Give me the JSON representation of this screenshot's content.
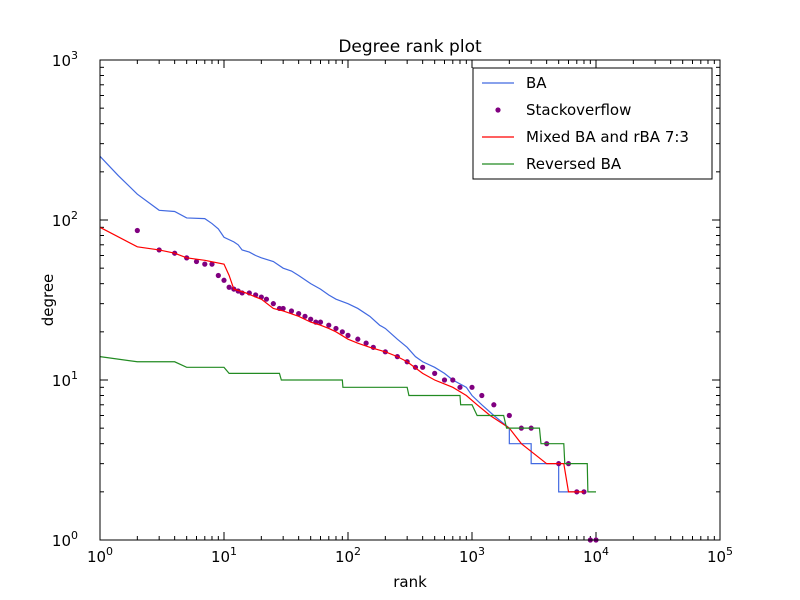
{
  "chart_data": {
    "type": "line",
    "title": "Degree rank plot",
    "xlabel": "rank",
    "ylabel": "degree",
    "xscale": "log",
    "yscale": "log",
    "xlim": [
      1,
      100000
    ],
    "ylim": [
      1,
      1000
    ],
    "grid": false,
    "legend_position": "top-right",
    "x_tick_labels": [
      {
        "base": "10",
        "exp": "0",
        "value": 1
      },
      {
        "base": "10",
        "exp": "1",
        "value": 10
      },
      {
        "base": "10",
        "exp": "2",
        "value": 100
      },
      {
        "base": "10",
        "exp": "3",
        "value": 1000
      },
      {
        "base": "10",
        "exp": "4",
        "value": 10000
      },
      {
        "base": "10",
        "exp": "5",
        "value": 100000
      }
    ],
    "y_tick_labels": [
      {
        "base": "10",
        "exp": "0",
        "value": 1
      },
      {
        "base": "10",
        "exp": "1",
        "value": 10
      },
      {
        "base": "10",
        "exp": "2",
        "value": 100
      },
      {
        "base": "10",
        "exp": "3",
        "value": 1000
      }
    ],
    "series": [
      {
        "name": "BA",
        "kind": "line",
        "color": "#4169e1",
        "points": [
          [
            1,
            250
          ],
          [
            1.4,
            190
          ],
          [
            2,
            145
          ],
          [
            3,
            115
          ],
          [
            4,
            113
          ],
          [
            5,
            103
          ],
          [
            7,
            102
          ],
          [
            8,
            95
          ],
          [
            9,
            88
          ],
          [
            10,
            78
          ],
          [
            12,
            73
          ],
          [
            13,
            70
          ],
          [
            14,
            65
          ],
          [
            16,
            63
          ],
          [
            18,
            60
          ],
          [
            20,
            58
          ],
          [
            25,
            55
          ],
          [
            30,
            50
          ],
          [
            35,
            48
          ],
          [
            40,
            45
          ],
          [
            50,
            40
          ],
          [
            60,
            37
          ],
          [
            70,
            34
          ],
          [
            80,
            32
          ],
          [
            100,
            30
          ],
          [
            120,
            28
          ],
          [
            150,
            25
          ],
          [
            180,
            22
          ],
          [
            200,
            21
          ],
          [
            250,
            18
          ],
          [
            300,
            16
          ],
          [
            350,
            14
          ],
          [
            400,
            13
          ],
          [
            500,
            12
          ],
          [
            600,
            11
          ],
          [
            700,
            10
          ],
          [
            900,
            9
          ],
          [
            1000,
            8
          ],
          [
            1200,
            7
          ],
          [
            1500,
            6
          ],
          [
            2000,
            5
          ],
          [
            2000,
            4
          ],
          [
            3000,
            4
          ],
          [
            3000,
            3
          ],
          [
            5000,
            3
          ],
          [
            5000,
            2
          ],
          [
            7000,
            2
          ]
        ]
      },
      {
        "name": "Stackoverflow",
        "kind": "scatter",
        "color": "#800080",
        "points": [
          [
            2,
            86
          ],
          [
            3,
            65
          ],
          [
            4,
            62
          ],
          [
            5,
            58
          ],
          [
            6,
            55
          ],
          [
            7,
            53
          ],
          [
            8,
            53
          ],
          [
            9,
            45
          ],
          [
            10,
            42
          ],
          [
            11,
            38
          ],
          [
            12,
            37
          ],
          [
            13,
            36
          ],
          [
            14,
            35
          ],
          [
            16,
            35
          ],
          [
            18,
            34
          ],
          [
            20,
            33
          ],
          [
            22,
            32
          ],
          [
            25,
            30
          ],
          [
            28,
            28
          ],
          [
            30,
            28
          ],
          [
            35,
            27
          ],
          [
            40,
            26
          ],
          [
            45,
            25
          ],
          [
            50,
            24
          ],
          [
            55,
            23
          ],
          [
            60,
            23
          ],
          [
            70,
            22
          ],
          [
            80,
            21
          ],
          [
            90,
            20
          ],
          [
            100,
            19
          ],
          [
            120,
            18
          ],
          [
            140,
            17
          ],
          [
            160,
            16
          ],
          [
            200,
            15
          ],
          [
            250,
            14
          ],
          [
            300,
            13
          ],
          [
            350,
            12
          ],
          [
            400,
            12
          ],
          [
            500,
            11
          ],
          [
            600,
            10
          ],
          [
            700,
            10
          ],
          [
            800,
            9
          ],
          [
            1000,
            9
          ],
          [
            1200,
            8
          ],
          [
            1500,
            7
          ],
          [
            2000,
            6
          ],
          [
            2500,
            5
          ],
          [
            3000,
            5
          ],
          [
            4000,
            4
          ],
          [
            5000,
            3
          ],
          [
            6000,
            3
          ],
          [
            7000,
            2
          ],
          [
            8000,
            2
          ],
          [
            9000,
            1
          ],
          [
            10000,
            1
          ]
        ]
      },
      {
        "name": "Mixed BA and rBA 7:3",
        "kind": "line",
        "color": "#ff0000",
        "points": [
          [
            1,
            90
          ],
          [
            2,
            68
          ],
          [
            3,
            65
          ],
          [
            4,
            62
          ],
          [
            5,
            58
          ],
          [
            7,
            56
          ],
          [
            10,
            53
          ],
          [
            11,
            45
          ],
          [
            12,
            37
          ],
          [
            15,
            35
          ],
          [
            18,
            33
          ],
          [
            20,
            32
          ],
          [
            25,
            28
          ],
          [
            30,
            27
          ],
          [
            40,
            25
          ],
          [
            50,
            23
          ],
          [
            60,
            22
          ],
          [
            70,
            21
          ],
          [
            80,
            20
          ],
          [
            100,
            18
          ],
          [
            120,
            17
          ],
          [
            150,
            16
          ],
          [
            200,
            15
          ],
          [
            250,
            14
          ],
          [
            300,
            13
          ],
          [
            400,
            11
          ],
          [
            500,
            10
          ],
          [
            700,
            9
          ],
          [
            900,
            8
          ],
          [
            1100,
            7
          ],
          [
            1400,
            6
          ],
          [
            2000,
            5
          ],
          [
            2500,
            4
          ],
          [
            4000,
            3
          ],
          [
            5500,
            3
          ],
          [
            6000,
            2
          ],
          [
            8000,
            2
          ]
        ]
      },
      {
        "name": "Reversed BA",
        "kind": "line",
        "color": "#228b22",
        "points": [
          [
            1,
            14
          ],
          [
            2,
            13
          ],
          [
            3,
            13
          ],
          [
            4,
            13
          ],
          [
            5,
            12
          ],
          [
            10,
            12
          ],
          [
            11,
            11
          ],
          [
            28,
            11
          ],
          [
            29,
            10
          ],
          [
            90,
            10
          ],
          [
            91,
            9
          ],
          [
            300,
            9
          ],
          [
            310,
            8
          ],
          [
            800,
            8
          ],
          [
            810,
            7
          ],
          [
            1000,
            7
          ],
          [
            1100,
            6
          ],
          [
            1800,
            6
          ],
          [
            1900,
            5
          ],
          [
            3500,
            5
          ],
          [
            3600,
            4
          ],
          [
            5500,
            4
          ],
          [
            5600,
            3
          ],
          [
            8500,
            3
          ],
          [
            8600,
            2
          ],
          [
            10000,
            2
          ]
        ]
      }
    ]
  }
}
